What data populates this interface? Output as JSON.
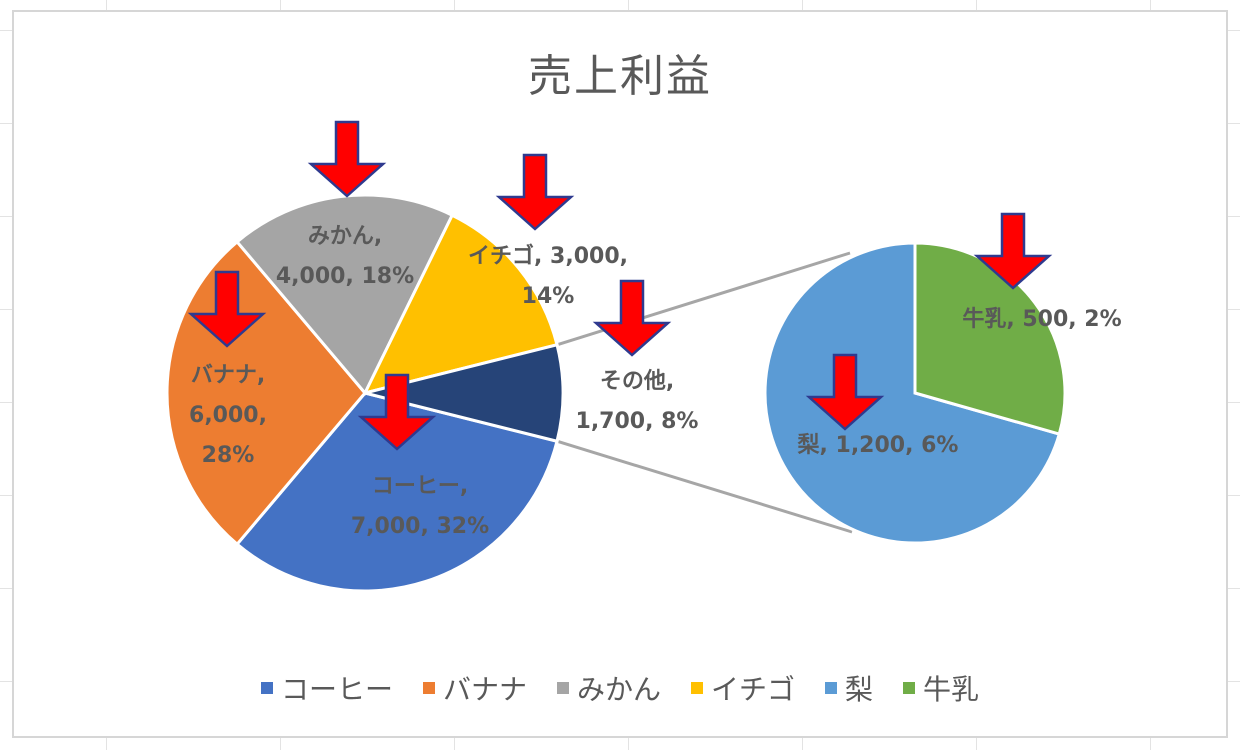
{
  "chart_data": {
    "type": "pie",
    "subtype": "pie-of-pie",
    "title": "売上利益",
    "slices": [
      {
        "name": "コーヒー",
        "value": 7000,
        "percent": "32%",
        "color": "#4472C4",
        "label_lines": [
          "コーヒー,",
          "7,000, 32%"
        ]
      },
      {
        "name": "バナナ",
        "value": 6000,
        "percent": "28%",
        "color": "#ED7D31",
        "label_lines": [
          "バナナ,",
          "6,000,",
          "28%"
        ]
      },
      {
        "name": "みかん",
        "value": 4000,
        "percent": "18%",
        "color": "#A5A5A5",
        "label_lines": [
          "みかん,",
          "4,000, 18%"
        ]
      },
      {
        "name": "イチゴ",
        "value": 3000,
        "percent": "14%",
        "color": "#FFC000",
        "label_lines": [
          "イチゴ, 3,000,",
          "14%"
        ]
      },
      {
        "name": "その他",
        "value": 1700,
        "percent": "8%",
        "color": "#264478",
        "label_lines": [
          "その他,",
          "1,700, 8%"
        ]
      }
    ],
    "secondary_slices": [
      {
        "name": "梨",
        "value": 1200,
        "percent": "6%",
        "color": "#5B9BD5",
        "label_lines": [
          "梨, 1,200, 6%"
        ]
      },
      {
        "name": "牛乳",
        "value": 500,
        "percent": "2%",
        "color": "#70AD47",
        "label_lines": [
          "牛乳, 500, 2%"
        ]
      }
    ],
    "legend": {
      "position": "bottom",
      "entries": [
        {
          "name": "コーヒー",
          "color": "#4472C4"
        },
        {
          "name": "バナナ",
          "color": "#ED7D31"
        },
        {
          "name": "みかん",
          "color": "#A5A5A5"
        },
        {
          "name": "イチゴ",
          "color": "#FFC000"
        },
        {
          "name": "梨",
          "color": "#5B9BD5"
        },
        {
          "name": "牛乳",
          "color": "#70AD47"
        }
      ]
    },
    "annotation_arrow_color": "#FF0000",
    "annotation_arrow_outline": "#2F3A8F"
  }
}
